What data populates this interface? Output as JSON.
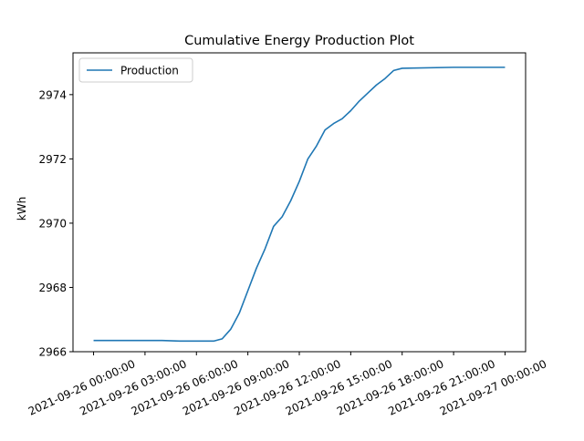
{
  "chart_data": {
    "type": "line",
    "title": "Cumulative Energy Production Plot",
    "xlabel": "",
    "ylabel": "kWh",
    "xlim": [
      "2021-09-25 22:48:00",
      "2021-09-27 01:12:00"
    ],
    "ylim": [
      2966.0,
      2975.3
    ],
    "xticks": [
      "2021-09-26 00:00:00",
      "2021-09-26 03:00:00",
      "2021-09-26 06:00:00",
      "2021-09-26 09:00:00",
      "2021-09-26 12:00:00",
      "2021-09-26 15:00:00",
      "2021-09-26 18:00:00",
      "2021-09-26 21:00:00",
      "2021-09-27 00:00:00"
    ],
    "xtick_rotation": 25,
    "yticks": [
      2966,
      2968,
      2970,
      2972,
      2974
    ],
    "ytick_labels": [
      "2966",
      "2968",
      "2970",
      "2972",
      "2974"
    ],
    "grid": false,
    "legend": {
      "placement": "top-left"
    },
    "series": [
      {
        "name": "Production",
        "color": "#1f77b4",
        "x": [
          "2021-09-26 00:00:00",
          "2021-09-26 02:00:00",
          "2021-09-26 04:00:00",
          "2021-09-26 05:00:00",
          "2021-09-26 06:00:00",
          "2021-09-26 07:00:00",
          "2021-09-26 07:30:00",
          "2021-09-26 08:00:00",
          "2021-09-26 08:30:00",
          "2021-09-26 09:00:00",
          "2021-09-26 09:30:00",
          "2021-09-26 10:00:00",
          "2021-09-26 10:30:00",
          "2021-09-26 11:00:00",
          "2021-09-26 11:30:00",
          "2021-09-26 12:00:00",
          "2021-09-26 12:30:00",
          "2021-09-26 13:00:00",
          "2021-09-26 13:30:00",
          "2021-09-26 14:00:00",
          "2021-09-26 14:30:00",
          "2021-09-26 15:00:00",
          "2021-09-26 15:30:00",
          "2021-09-26 16:00:00",
          "2021-09-26 16:30:00",
          "2021-09-26 17:00:00",
          "2021-09-26 17:30:00",
          "2021-09-26 18:00:00",
          "2021-09-26 21:00:00",
          "2021-09-27 00:00:00"
        ],
        "values": [
          2966.35,
          2966.35,
          2966.35,
          2966.33,
          2966.33,
          2966.33,
          2966.4,
          2966.7,
          2967.2,
          2967.9,
          2968.6,
          2969.2,
          2969.9,
          2970.2,
          2970.7,
          2971.3,
          2972.0,
          2972.4,
          2972.9,
          2973.1,
          2973.25,
          2973.5,
          2973.8,
          2974.05,
          2974.3,
          2974.5,
          2974.75,
          2974.82,
          2974.85,
          2974.85
        ]
      }
    ]
  }
}
